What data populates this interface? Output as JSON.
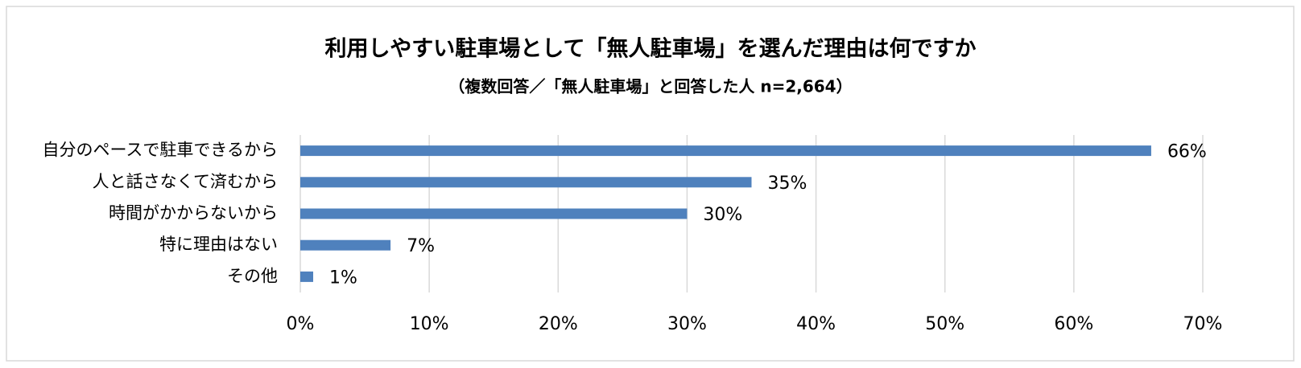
{
  "chart_data": {
    "type": "bar",
    "orientation": "horizontal",
    "title": "利用しやすい駐車場として「無人駐車場」を選んだ理由は何ですか",
    "subtitle": "（複数回答／「無人駐車場」と回答した人 n=2,664）",
    "categories": [
      "自分のペースで駐車できるから",
      "人と話さなくて済むから",
      "時間がかからないから",
      "特に理由はない",
      "その他"
    ],
    "values": [
      66,
      35,
      30,
      7,
      1
    ],
    "value_labels": [
      "66%",
      "35%",
      "30%",
      "7%",
      "1%"
    ],
    "color": "#4f81bd",
    "xlim": [
      0,
      70
    ],
    "xticks": [
      {
        "value": 0,
        "label": "0%"
      },
      {
        "value": 10,
        "label": "10%"
      },
      {
        "value": 20,
        "label": "20%"
      },
      {
        "value": 30,
        "label": "30%"
      },
      {
        "value": 40,
        "label": "40%"
      },
      {
        "value": 50,
        "label": "50%"
      },
      {
        "value": 60,
        "label": "60%"
      },
      {
        "value": 70,
        "label": "70%"
      }
    ],
    "grid": true
  }
}
